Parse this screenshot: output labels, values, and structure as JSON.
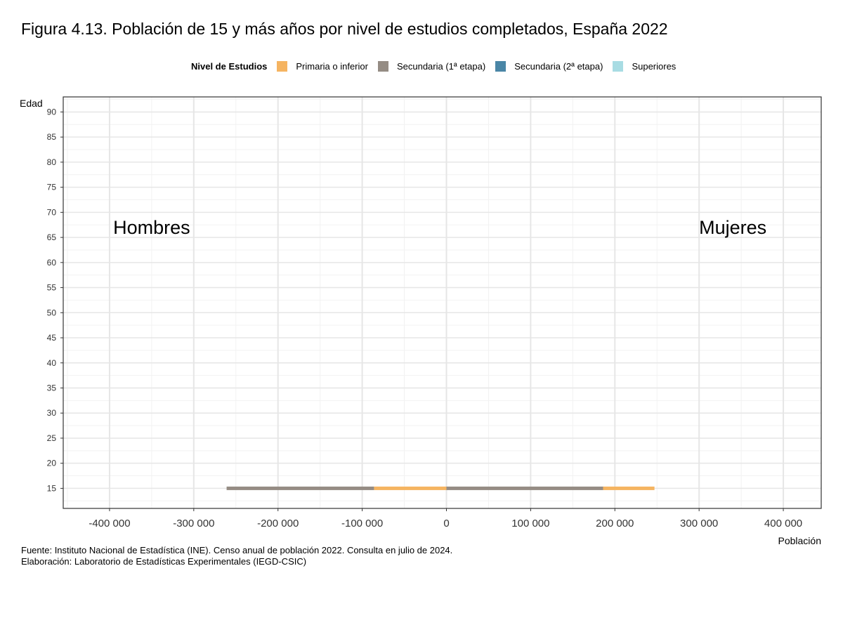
{
  "title": "Figura 4.13. Población de 15 y más años por nivel de estudios completados, España 2022",
  "legend": {
    "title": "Nivel de Estudios",
    "items": [
      {
        "label": "Primaria o inferior",
        "color": "#F5B461"
      },
      {
        "label": "Secundaria (1ª etapa)",
        "color": "#958C84"
      },
      {
        "label": "Secundaria (2ª etapa)",
        "color": "#4A86A6"
      },
      {
        "label": "Superiores",
        "color": "#A8DCE3"
      }
    ]
  },
  "footer": {
    "source": "Fuente: Instituto Nacional de Estadística (INE). Censo anual de población 2022. Consulta en julio de 2024.",
    "credit": "Elaboración: Laboratorio de Estadísticas Experimentales (IEGD-CSIC)"
  },
  "chart_data": {
    "type": "bar",
    "orientation": "horizontal-stacked-pyramid",
    "xlabel": "Población",
    "ylabel": "Edad",
    "xlim": [
      -455000,
      445000
    ],
    "ylim": [
      11,
      93
    ],
    "x_ticks": [
      -400000,
      -300000,
      -200000,
      -100000,
      0,
      100000,
      200000,
      300000,
      400000
    ],
    "x_tick_labels": [
      "-400 000",
      "-300 000",
      "-200 000",
      "-100 000",
      "0",
      "100 000",
      "200 000",
      "300 000",
      "400 000"
    ],
    "y_ticks": [
      15,
      20,
      25,
      30,
      35,
      40,
      45,
      50,
      55,
      60,
      65,
      70,
      75,
      80,
      85,
      90
    ],
    "grid": true,
    "legend_position": "top",
    "annotations": [
      {
        "text": "Hombres",
        "x": -350000,
        "y": 67
      },
      {
        "text": "Mujeres",
        "x": 340000,
        "y": 67
      }
    ],
    "ages": [
      15
    ],
    "series": [
      {
        "name": "Primaria o inferior",
        "sexo": "Hombres",
        "values": [
          -86000
        ]
      },
      {
        "name": "Secundaria (1ª etapa)",
        "sexo": "Hombres",
        "values": [
          -175000
        ]
      },
      {
        "name": "Secundaria (1ª etapa)",
        "sexo": "Mujeres",
        "values": [
          186000
        ]
      },
      {
        "name": "Primaria o inferior",
        "sexo": "Mujeres",
        "values": [
          61000
        ]
      }
    ]
  }
}
